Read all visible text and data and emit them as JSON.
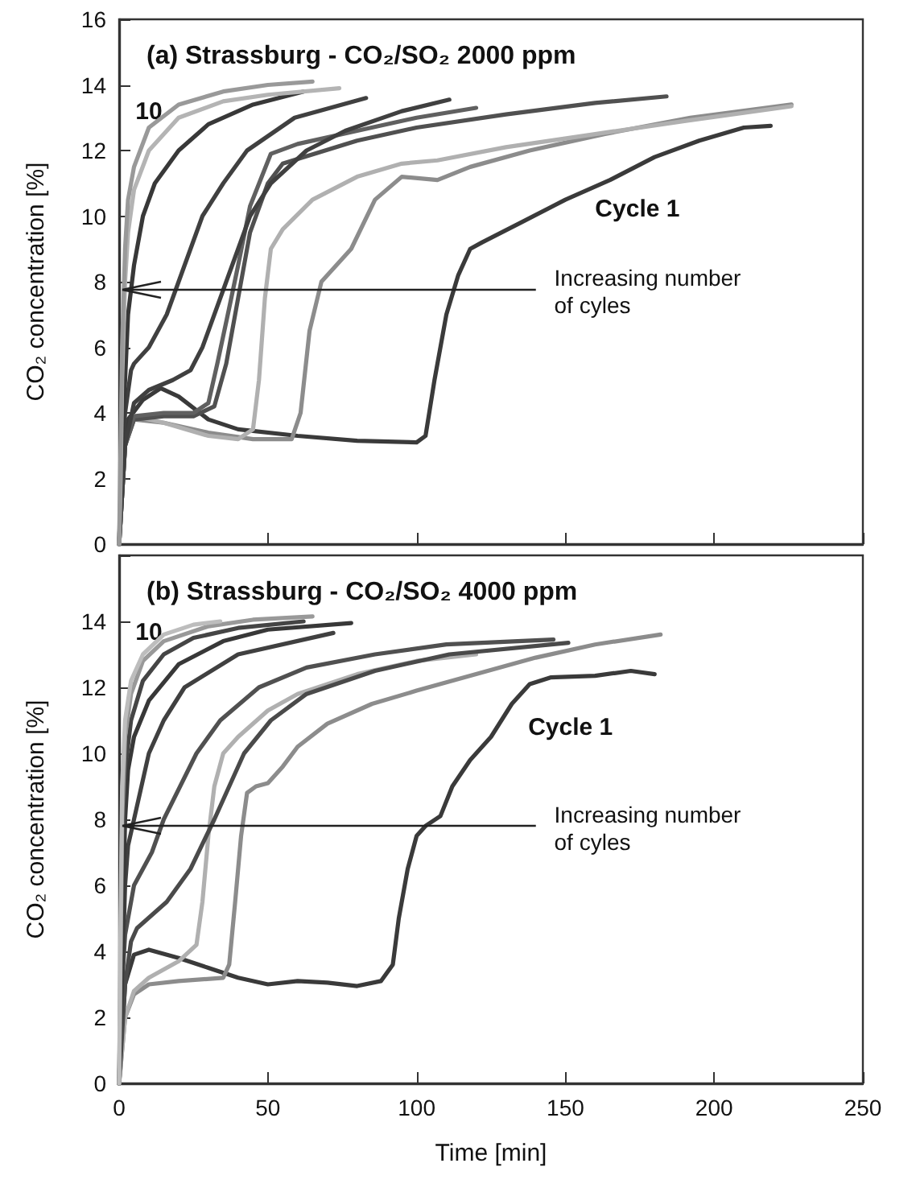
{
  "chart_data": [
    {
      "type": "line",
      "title": "(a) Strassburg - CO₂/SO₂ 2000 ppm",
      "ylabel": "CO₂ concentration [%]",
      "xlim": [
        0,
        250
      ],
      "xticks": [
        0,
        50,
        100,
        150,
        200,
        250
      ],
      "ylim": [
        0,
        16
      ],
      "yticks": [
        0,
        2,
        4,
        6,
        8,
        10,
        12,
        14,
        16
      ],
      "tick_labels": "y",
      "marker": "none",
      "line_style": "solid",
      "annotations": [
        "10",
        "Cycle 1",
        "Increasing number of cyles"
      ],
      "series": [
        {
          "color": "#3a3a3a",
          "x": [
            0,
            1,
            3,
            8,
            14,
            20,
            30,
            40,
            60,
            80,
            100,
            103,
            106,
            110,
            114,
            118,
            122,
            135,
            150,
            165,
            180,
            195,
            210,
            219
          ],
          "values": [
            0,
            2.5,
            3.8,
            4.4,
            4.75,
            4.5,
            3.8,
            3.5,
            3.3,
            3.15,
            3.1,
            3.3,
            5,
            7,
            8.2,
            9,
            9.2,
            9.8,
            10.5,
            11.1,
            11.8,
            12.3,
            12.7,
            12.75
          ]
        },
        {
          "color": "#8c8c8c",
          "x": [
            0,
            2,
            5,
            15,
            30,
            45,
            58,
            61,
            64,
            68,
            78,
            86,
            95,
            107,
            118,
            138,
            163,
            192,
            226
          ],
          "values": [
            0,
            3,
            3.8,
            3.7,
            3.4,
            3.2,
            3.2,
            4,
            6.5,
            8,
            9,
            10.5,
            11.2,
            11.1,
            11.5,
            12,
            12.5,
            13,
            13.4
          ]
        },
        {
          "color": "#b0b0b0",
          "x": [
            0,
            2,
            5,
            15,
            30,
            40,
            45,
            47,
            49,
            51,
            55,
            65,
            80,
            95,
            107,
            130,
            160,
            190,
            226
          ],
          "values": [
            0,
            3,
            3.9,
            3.7,
            3.3,
            3.2,
            3.5,
            5,
            7.5,
            9,
            9.6,
            10.5,
            11.2,
            11.6,
            11.7,
            12.1,
            12.5,
            12.9,
            13.35
          ]
        },
        {
          "color": "#505050",
          "x": [
            0,
            2,
            5,
            15,
            25,
            32,
            36,
            40,
            44,
            50,
            55,
            62,
            80,
            100,
            130,
            160,
            184
          ],
          "values": [
            0,
            3,
            3.8,
            3.9,
            3.9,
            4.2,
            5.5,
            7.5,
            9.5,
            11,
            11.6,
            11.8,
            12.3,
            12.7,
            13.1,
            13.45,
            13.65
          ]
        },
        {
          "color": "#606060",
          "x": [
            0,
            2,
            5,
            15,
            25,
            30,
            33,
            37,
            40,
            44,
            51,
            60,
            80,
            100,
            120
          ],
          "values": [
            0,
            3,
            3.9,
            4,
            4,
            4.3,
            5.5,
            7.2,
            8.5,
            10.3,
            11.9,
            12.2,
            12.6,
            13,
            13.3
          ]
        },
        {
          "color": "#404040",
          "x": [
            0,
            2,
            5,
            10,
            18,
            24,
            28,
            36,
            44,
            51,
            63,
            76,
            95,
            111
          ],
          "values": [
            0,
            3,
            4.3,
            4.7,
            5,
            5.3,
            6,
            8,
            10,
            11,
            12,
            12.6,
            13.2,
            13.55
          ]
        },
        {
          "color": "#404040",
          "x": [
            0,
            1,
            2,
            4,
            5,
            10,
            16,
            20,
            28,
            35,
            43,
            59,
            83
          ],
          "values": [
            0,
            2.5,
            4,
            5.3,
            5.5,
            6,
            7,
            8,
            10,
            11,
            12,
            13,
            13.6
          ]
        },
        {
          "color": "#383838",
          "x": [
            0,
            1,
            2,
            3,
            5,
            8,
            12,
            20,
            30,
            45,
            62
          ],
          "values": [
            0,
            3,
            5,
            7,
            8.5,
            10,
            11,
            12,
            12.8,
            13.4,
            13.8
          ]
        },
        {
          "color": "#b4b4b4",
          "x": [
            0,
            0.5,
            1,
            2,
            3,
            5,
            10,
            20,
            35,
            50,
            74
          ],
          "values": [
            0,
            2,
            5,
            8,
            9.5,
            10.8,
            12,
            13,
            13.5,
            13.7,
            13.9
          ]
        },
        {
          "color": "#999999",
          "x": [
            0,
            0.5,
            1,
            2,
            3,
            5,
            10,
            20,
            35,
            50,
            65
          ],
          "values": [
            0,
            3,
            6,
            9,
            10.5,
            11.5,
            12.7,
            13.4,
            13.8,
            14,
            14.1
          ]
        }
      ]
    },
    {
      "type": "line",
      "title": "(b) Strassburg - CO₂/SO₂ 4000 ppm",
      "xlabel": "Time [min]",
      "ylabel": "CO₂ concentration [%]",
      "xlim": [
        0,
        250
      ],
      "xticks": [
        0,
        50,
        100,
        150,
        200,
        250
      ],
      "ylim": [
        0,
        16
      ],
      "yticks": [
        0,
        2,
        4,
        6,
        8,
        10,
        12,
        14,
        {
          "value": 16,
          "label": null
        }
      ],
      "marker": "none",
      "line_style": "solid",
      "annotations": [
        "10",
        "Cycle 1",
        "Increasing number of cyles"
      ],
      "series": [
        {
          "color": "#3a3a3a",
          "x": [
            0,
            2,
            5,
            10,
            20,
            30,
            40,
            50,
            60,
            70,
            80,
            88,
            92,
            94,
            97,
            100,
            103,
            108,
            112,
            118,
            125,
            132,
            138,
            145,
            160,
            172,
            180
          ],
          "values": [
            0,
            3,
            3.9,
            4.05,
            3.8,
            3.5,
            3.2,
            3,
            3.1,
            3.05,
            2.95,
            3.1,
            3.6,
            5,
            6.5,
            7.5,
            7.8,
            8.1,
            9,
            9.8,
            10.5,
            11.5,
            12.1,
            12.3,
            12.35,
            12.5,
            12.4
          ]
        },
        {
          "color": "#8c8c8c",
          "x": [
            0,
            2,
            5,
            10,
            20,
            35,
            37,
            39,
            41,
            43,
            46,
            50,
            55,
            60,
            70,
            85,
            100,
            120,
            140,
            160,
            182
          ],
          "values": [
            0,
            2,
            2.7,
            3,
            3.1,
            3.2,
            3.6,
            5.5,
            7.5,
            8.8,
            9,
            9.1,
            9.6,
            10.2,
            10.9,
            11.5,
            11.9,
            12.4,
            12.9,
            13.3,
            13.6
          ]
        },
        {
          "color": "#b0b0b0",
          "x": [
            0,
            2,
            5,
            10,
            20,
            26,
            28,
            30,
            32,
            35,
            40,
            50,
            60,
            80,
            100,
            120
          ],
          "values": [
            0,
            2,
            2.8,
            3.2,
            3.7,
            4.2,
            5.5,
            7.5,
            9,
            10,
            10.5,
            11.3,
            11.8,
            12.4,
            12.8,
            13
          ]
        },
        {
          "color": "#4a4a4a",
          "x": [
            0,
            2,
            4,
            6,
            16,
            24,
            32,
            42,
            51,
            63,
            86,
            111,
            151
          ],
          "values": [
            0,
            3,
            4.3,
            4.7,
            5.5,
            6.5,
            8,
            10,
            11,
            11.8,
            12.5,
            13,
            13.35
          ]
        },
        {
          "color": "#505050",
          "x": [
            0,
            1,
            2,
            5,
            11,
            15,
            26,
            34,
            47,
            63,
            86,
            110,
            146
          ],
          "values": [
            0,
            3,
            4.5,
            6,
            7,
            8,
            10,
            11,
            12,
            12.6,
            13,
            13.3,
            13.45
          ]
        },
        {
          "color": "#404040",
          "x": [
            0,
            1,
            2,
            3,
            5,
            10,
            15,
            22,
            40,
            72
          ],
          "values": [
            0,
            3,
            6,
            7.2,
            8,
            10,
            11,
            12,
            13,
            13.65
          ]
        },
        {
          "color": "#383838",
          "x": [
            0,
            1,
            2,
            3,
            5,
            10,
            20,
            35,
            50,
            78
          ],
          "values": [
            0,
            4,
            8,
            9.5,
            10.5,
            11.6,
            12.7,
            13.4,
            13.75,
            13.95
          ]
        },
        {
          "color": "#454545",
          "x": [
            0,
            0.5,
            1,
            2,
            4,
            8,
            15,
            25,
            40,
            62
          ],
          "values": [
            0,
            3,
            7,
            9.5,
            11,
            12.2,
            13,
            13.5,
            13.8,
            14
          ]
        },
        {
          "color": "#999999",
          "x": [
            0,
            0.5,
            1,
            2,
            4,
            8,
            15,
            30,
            45,
            65
          ],
          "values": [
            0,
            4,
            8,
            10.5,
            11.8,
            12.8,
            13.4,
            13.85,
            14.05,
            14.15
          ]
        },
        {
          "color": "#bdbdbd",
          "x": [
            0,
            0.5,
            1,
            2,
            4,
            8,
            15,
            25,
            34
          ],
          "values": [
            0,
            5,
            9,
            11,
            12.2,
            13,
            13.6,
            13.9,
            14
          ]
        }
      ]
    }
  ]
}
